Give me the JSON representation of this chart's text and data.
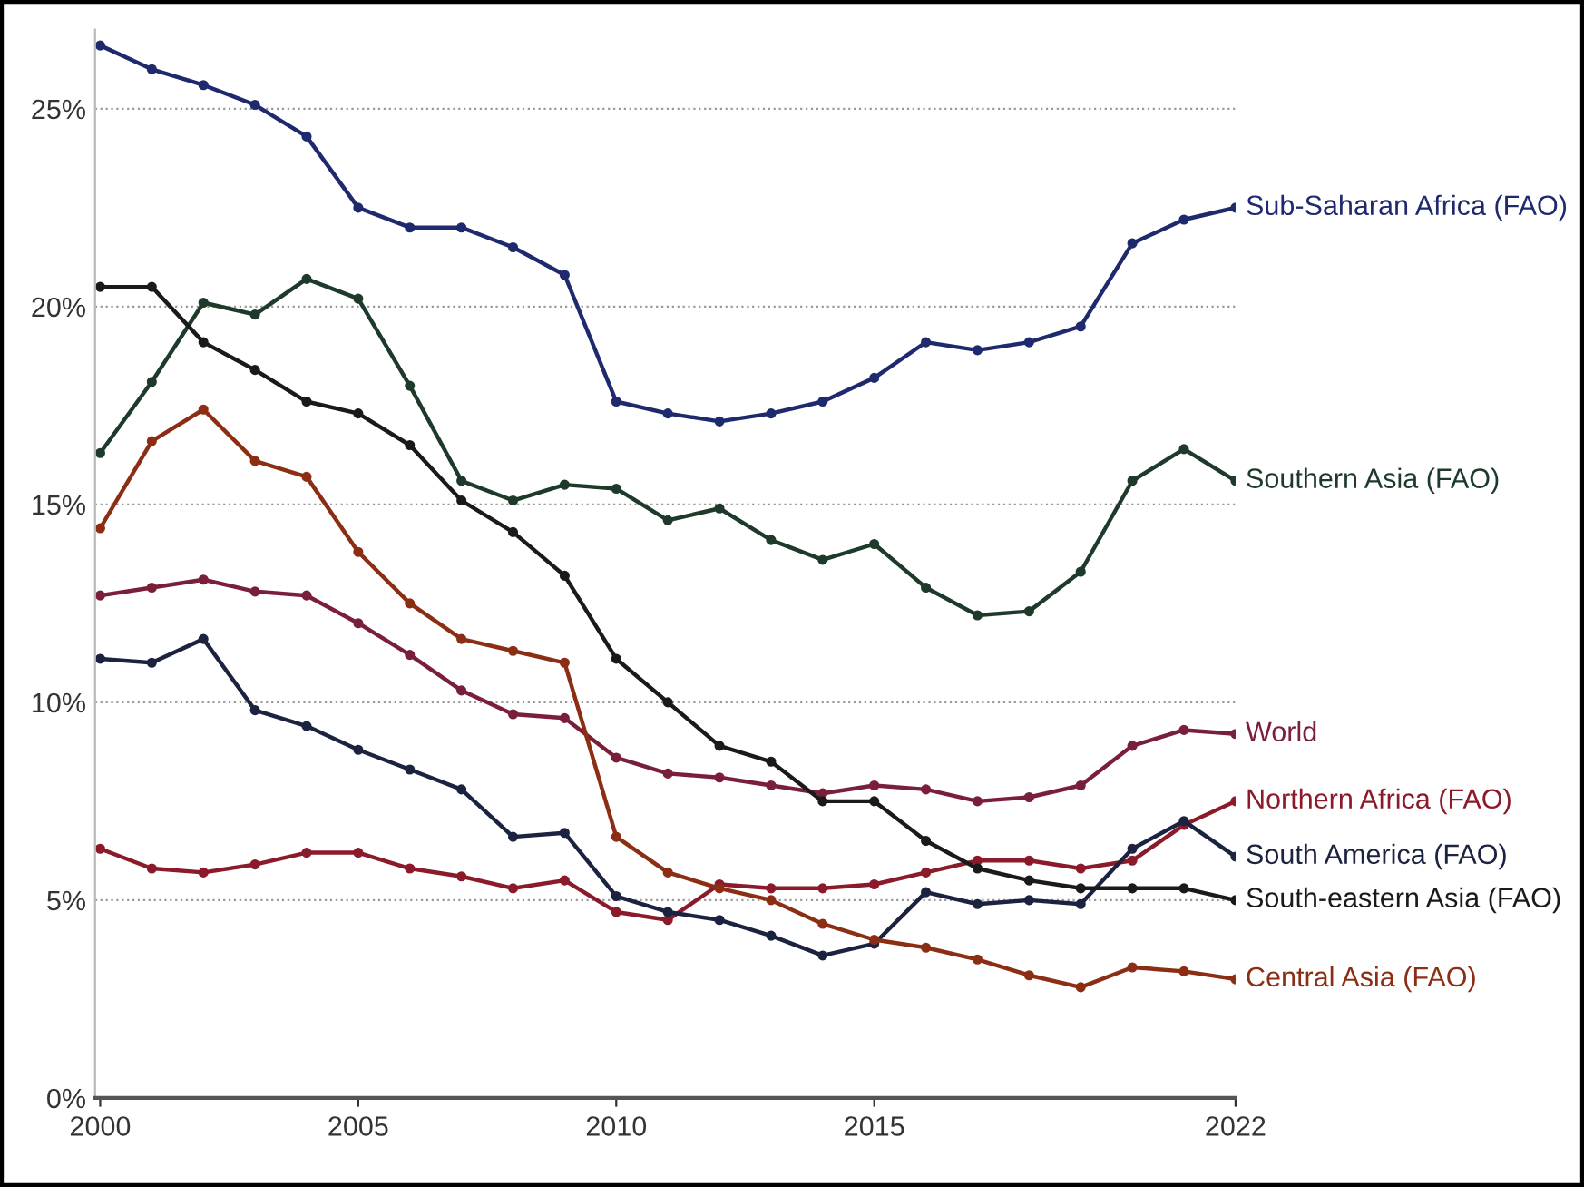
{
  "chart_data": {
    "type": "line",
    "x": [
      2000,
      2001,
      2002,
      2003,
      2004,
      2005,
      2006,
      2007,
      2008,
      2009,
      2010,
      2011,
      2012,
      2013,
      2014,
      2015,
      2016,
      2017,
      2018,
      2019,
      2020,
      2021,
      2022
    ],
    "series": [
      {
        "name": "Sub-Saharan Africa (FAO)",
        "color": "#1f2a6e",
        "values": [
          26.6,
          26.0,
          25.6,
          25.1,
          24.3,
          22.5,
          22.0,
          22.0,
          21.5,
          20.8,
          17.6,
          17.3,
          17.1,
          17.3,
          17.6,
          18.2,
          19.1,
          18.9,
          19.1,
          19.5,
          21.6,
          22.2,
          22.5
        ]
      },
      {
        "name": "Southern Asia (FAO)",
        "color": "#1e3a2a",
        "values": [
          16.3,
          18.1,
          20.1,
          19.8,
          20.7,
          20.2,
          18.0,
          15.6,
          15.1,
          15.5,
          15.4,
          14.6,
          14.9,
          14.1,
          13.6,
          14.0,
          12.9,
          12.2,
          12.3,
          13.3,
          15.6,
          16.4,
          15.6
        ]
      },
      {
        "name": "World",
        "color": "#7a1f3a",
        "values": [
          12.7,
          12.9,
          13.1,
          12.8,
          12.7,
          12.0,
          11.2,
          10.3,
          9.7,
          9.6,
          8.6,
          8.2,
          8.1,
          7.9,
          7.7,
          7.9,
          7.8,
          7.5,
          7.6,
          7.9,
          8.9,
          9.3,
          9.2
        ]
      },
      {
        "name": "Northern Africa (FAO)",
        "color": "#8b1a2a",
        "values": [
          6.3,
          5.8,
          5.7,
          5.9,
          6.2,
          6.2,
          5.8,
          5.6,
          5.3,
          5.5,
          4.7,
          4.5,
          5.4,
          5.3,
          5.3,
          5.4,
          5.7,
          6.0,
          6.0,
          5.8,
          6.0,
          6.9,
          7.5
        ]
      },
      {
        "name": "South America (FAO)",
        "color": "#1c2340",
        "values": [
          11.1,
          11.0,
          11.6,
          9.8,
          9.4,
          8.8,
          8.3,
          7.8,
          6.6,
          6.7,
          5.1,
          4.7,
          4.5,
          4.1,
          3.6,
          3.9,
          5.2,
          4.9,
          5.0,
          4.9,
          6.3,
          7.0,
          6.1
        ]
      },
      {
        "name": "South-eastern Asia (FAO)",
        "color": "#1a1a1a",
        "values": [
          20.5,
          20.5,
          19.1,
          18.4,
          17.6,
          17.3,
          16.5,
          15.1,
          14.3,
          13.2,
          11.1,
          10.0,
          8.9,
          8.5,
          7.5,
          7.5,
          6.5,
          5.8,
          5.5,
          5.3,
          5.3,
          5.3,
          5.0
        ]
      },
      {
        "name": "Central Asia (FAO)",
        "color": "#8b2e14",
        "values": [
          14.4,
          16.6,
          17.4,
          16.1,
          15.7,
          13.8,
          12.5,
          11.6,
          11.3,
          11.0,
          6.6,
          5.7,
          5.3,
          5.0,
          4.4,
          4.0,
          3.8,
          3.5,
          3.1,
          2.8,
          3.3,
          3.2,
          3.0
        ]
      }
    ],
    "xlim": [
      1999.9,
      2022
    ],
    "xticks": [
      2000,
      2005,
      2010,
      2015,
      2022
    ],
    "ylim": [
      0,
      27
    ],
    "yticks": [
      {
        "value": 0,
        "label": "0%"
      },
      {
        "value": 5,
        "label": "5%"
      },
      {
        "value": 10,
        "label": "10%"
      },
      {
        "value": 15,
        "label": "15%"
      },
      {
        "value": 20,
        "label": "20%"
      },
      {
        "value": 25,
        "label": "25%"
      }
    ],
    "grid": "y",
    "legend": false,
    "marker": "circle",
    "line_style": "solid"
  }
}
